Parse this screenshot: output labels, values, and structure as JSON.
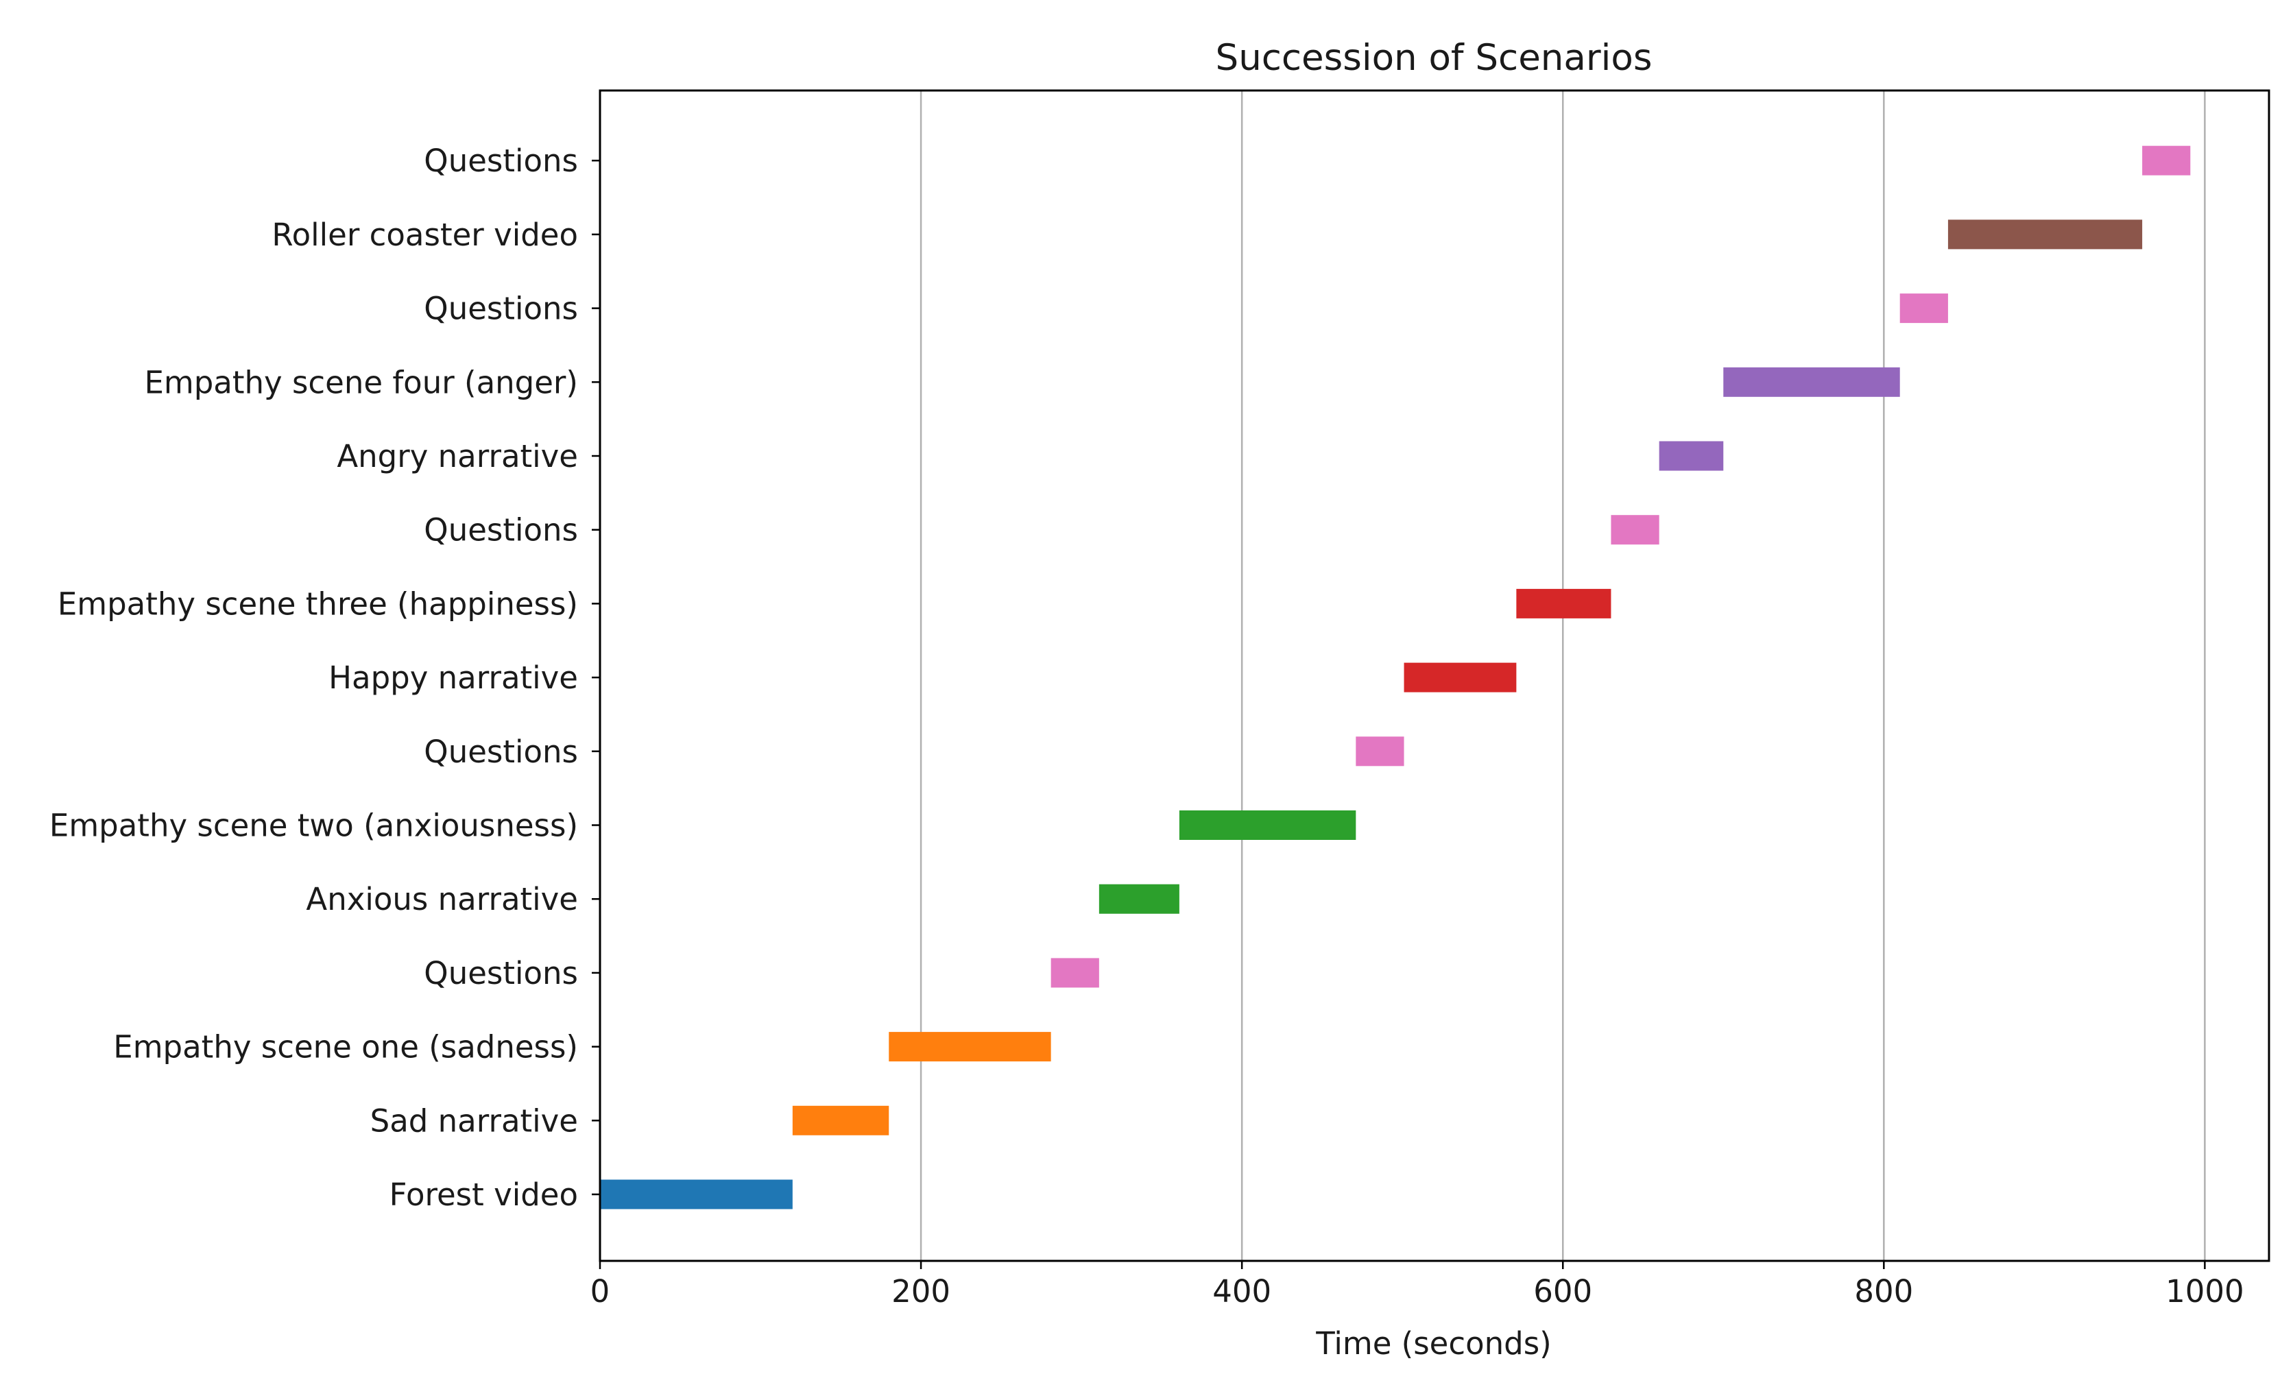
{
  "chart_data": {
    "type": "bar",
    "orientation": "horizontal",
    "title": "Succession of Scenarios",
    "xlabel": "Time (seconds)",
    "ylabel": "",
    "xlim": [
      0,
      1040
    ],
    "xticks": [
      0,
      200,
      400,
      600,
      800,
      1000
    ],
    "grid": "x",
    "segments": [
      {
        "label": "Forest video",
        "start": 0,
        "end": 120,
        "color": "#1f77b4"
      },
      {
        "label": "Sad narrative",
        "start": 120,
        "end": 180,
        "color": "#ff7f0e"
      },
      {
        "label": "Empathy scene one (sadness)",
        "start": 180,
        "end": 281,
        "color": "#ff7f0e"
      },
      {
        "label": "Questions",
        "start": 281,
        "end": 311,
        "color": "#e377c2"
      },
      {
        "label": "Anxious narrative",
        "start": 311,
        "end": 361,
        "color": "#2ca02c"
      },
      {
        "label": "Empathy scene two (anxiousness)",
        "start": 361,
        "end": 471,
        "color": "#2ca02c"
      },
      {
        "label": "Questions",
        "start": 471,
        "end": 501,
        "color": "#e377c2"
      },
      {
        "label": "Happy narrative",
        "start": 501,
        "end": 571,
        "color": "#d62728"
      },
      {
        "label": "Empathy scene three (happiness)",
        "start": 571,
        "end": 630,
        "color": "#d62728"
      },
      {
        "label": "Questions",
        "start": 630,
        "end": 660,
        "color": "#e377c2"
      },
      {
        "label": "Angry narrative",
        "start": 660,
        "end": 700,
        "color": "#9467bd"
      },
      {
        "label": "Empathy scene four (anger)",
        "start": 700,
        "end": 810,
        "color": "#9467bd"
      },
      {
        "label": "Questions",
        "start": 810,
        "end": 840,
        "color": "#e377c2"
      },
      {
        "label": "Roller coaster video",
        "start": 840,
        "end": 961,
        "color": "#8c564b"
      },
      {
        "label": "Questions",
        "start": 961,
        "end": 991,
        "color": "#e377c2"
      }
    ]
  }
}
